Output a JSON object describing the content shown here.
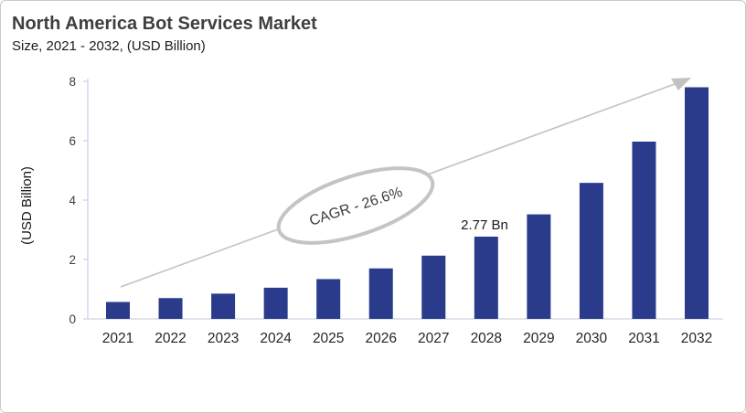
{
  "header": {
    "title": "North America Bot Services Market",
    "subtitle": "Size, 2021 - 2032, (USD Billion)"
  },
  "chart_data": {
    "type": "bar",
    "title": "North America Bot Services Market",
    "subtitle": "Size, 2021 - 2032, (USD Billion)",
    "categories": [
      "2021",
      "2022",
      "2023",
      "2024",
      "2025",
      "2026",
      "2027",
      "2028",
      "2029",
      "2030",
      "2031",
      "2032"
    ],
    "values": [
      0.57,
      0.7,
      0.85,
      1.05,
      1.34,
      1.7,
      2.13,
      2.77,
      3.52,
      4.58,
      5.97,
      7.8
    ],
    "xlabel": "",
    "ylabel": "(USD Billion)",
    "ylim": [
      0,
      8
    ],
    "yticks": [
      0,
      2,
      4,
      6,
      8
    ],
    "grid": false,
    "legend": "none",
    "bar_color": "#2b3b8c",
    "annotations": {
      "cagr_label": "CAGR - 26.6%",
      "data_label": {
        "category": "2028",
        "text": "2.77 Bn",
        "value": 2.77
      },
      "trend_arrow": "upward growth arrow"
    }
  },
  "colors": {
    "bar": "#2b3b8c",
    "axis": "#ccd3e2",
    "trend_gray": "#c2c2c2",
    "title_text": "#3f3f3f",
    "frame_border": "#c9c9c9"
  }
}
